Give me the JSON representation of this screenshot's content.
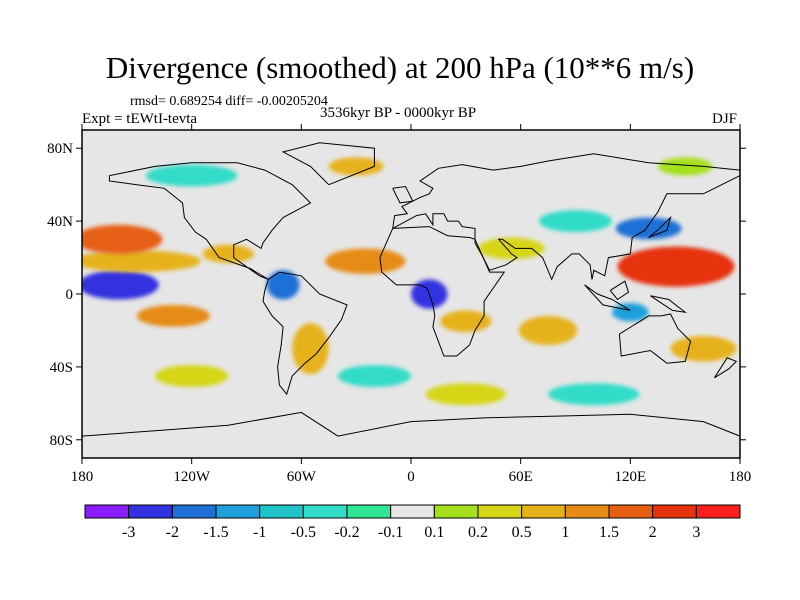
{
  "title": "Divergence (smoothed) at 200 hPa (10**6 m/s)",
  "stats": "rmsd= 0.689254 diff= -0.00205204",
  "experiment": "Expt = tEWtI-tevta",
  "period": "3536kyr BP - 0000kyr BP",
  "season": "DJF",
  "map": {
    "projection": "cylindrical equidistant",
    "lon_range": [
      -180,
      180
    ],
    "lat_range": [
      -90,
      90
    ],
    "x_ticks": [
      {
        "lon": -180,
        "label": "180"
      },
      {
        "lon": -120,
        "label": "120W"
      },
      {
        "lon": -60,
        "label": "60W"
      },
      {
        "lon": 0,
        "label": "0"
      },
      {
        "lon": 60,
        "label": "60E"
      },
      {
        "lon": 120,
        "label": "120E"
      },
      {
        "lon": 180,
        "label": "180"
      }
    ],
    "y_ticks": [
      {
        "lat": 80,
        "label": "80N"
      },
      {
        "lat": 40,
        "label": "40N"
      },
      {
        "lat": 0,
        "label": "0"
      },
      {
        "lat": -40,
        "label": "40S"
      },
      {
        "lat": -80,
        "label": "80S"
      }
    ]
  },
  "field": {
    "background_class": 7,
    "blobs": [
      {
        "lon": -160,
        "lat": 5,
        "rx": 22,
        "ry": 8,
        "cls": 1
      },
      {
        "lon": -150,
        "lat": 18,
        "rx": 35,
        "ry": 6,
        "cls": 10
      },
      {
        "lon": -160,
        "lat": 30,
        "rx": 24,
        "ry": 8,
        "cls": 12
      },
      {
        "lon": -130,
        "lat": -12,
        "rx": 20,
        "ry": 6,
        "cls": 11
      },
      {
        "lon": -100,
        "lat": 22,
        "rx": 14,
        "ry": 5,
        "cls": 10
      },
      {
        "lon": -70,
        "lat": 5,
        "rx": 9,
        "ry": 8,
        "cls": 2
      },
      {
        "lon": -55,
        "lat": -30,
        "rx": 10,
        "ry": 14,
        "cls": 10
      },
      {
        "lon": -25,
        "lat": 18,
        "rx": 22,
        "ry": 7,
        "cls": 11
      },
      {
        "lon": 10,
        "lat": 0,
        "rx": 10,
        "ry": 8,
        "cls": 1
      },
      {
        "lon": 30,
        "lat": -15,
        "rx": 14,
        "ry": 6,
        "cls": 10
      },
      {
        "lon": 55,
        "lat": 25,
        "rx": 18,
        "ry": 6,
        "cls": 9
      },
      {
        "lon": 75,
        "lat": -20,
        "rx": 16,
        "ry": 8,
        "cls": 10
      },
      {
        "lon": 90,
        "lat": 40,
        "rx": 20,
        "ry": 6,
        "cls": 5
      },
      {
        "lon": 130,
        "lat": 36,
        "rx": 18,
        "ry": 6,
        "cls": 2
      },
      {
        "lon": 145,
        "lat": 15,
        "rx": 32,
        "ry": 11,
        "cls": 13
      },
      {
        "lon": 120,
        "lat": -10,
        "rx": 10,
        "ry": 5,
        "cls": 3
      },
      {
        "lon": 160,
        "lat": -30,
        "rx": 18,
        "ry": 7,
        "cls": 10
      },
      {
        "lon": -20,
        "lat": -45,
        "rx": 20,
        "ry": 6,
        "cls": 5
      },
      {
        "lon": 30,
        "lat": -55,
        "rx": 22,
        "ry": 6,
        "cls": 9
      },
      {
        "lon": 100,
        "lat": -55,
        "rx": 25,
        "ry": 6,
        "cls": 5
      },
      {
        "lon": -120,
        "lat": -45,
        "rx": 20,
        "ry": 6,
        "cls": 9
      },
      {
        "lon": -120,
        "lat": 65,
        "rx": 25,
        "ry": 6,
        "cls": 5
      },
      {
        "lon": -30,
        "lat": 70,
        "rx": 15,
        "ry": 5,
        "cls": 10
      },
      {
        "lon": 150,
        "lat": 70,
        "rx": 15,
        "ry": 5,
        "cls": 8
      }
    ]
  },
  "colorbar": {
    "colors": [
      "#8a1cff",
      "#3232e0",
      "#1f6fd6",
      "#1f9fdc",
      "#20c3c8",
      "#33dcc8",
      "#31e693",
      "#e6e6e6",
      "#a4e01c",
      "#d6d619",
      "#e6b21a",
      "#e68c16",
      "#e65f12",
      "#e6330e",
      "#ff1f1f"
    ],
    "labels": [
      "-3",
      "-2",
      "-1.5",
      "-1",
      "-0.5",
      "-0.2",
      "-0.1",
      "0.1",
      "0.2",
      "0.5",
      "1",
      "1.5",
      "2",
      "3"
    ]
  }
}
